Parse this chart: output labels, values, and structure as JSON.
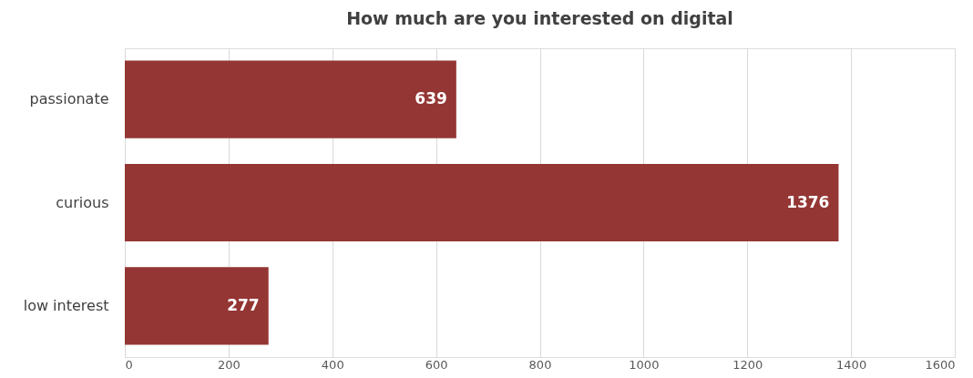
{
  "chart_data": {
    "type": "bar",
    "orientation": "horizontal",
    "title": "How much are you interested on digital",
    "categories": [
      "passionate",
      "curious",
      "low interest"
    ],
    "values": [
      639,
      1376,
      277
    ],
    "color": "#943634",
    "xlim": [
      0,
      1600
    ],
    "xticks": [
      0,
      200,
      400,
      600,
      800,
      1000,
      1200,
      1400,
      1600
    ],
    "grid": "x",
    "data_labels": true
  }
}
